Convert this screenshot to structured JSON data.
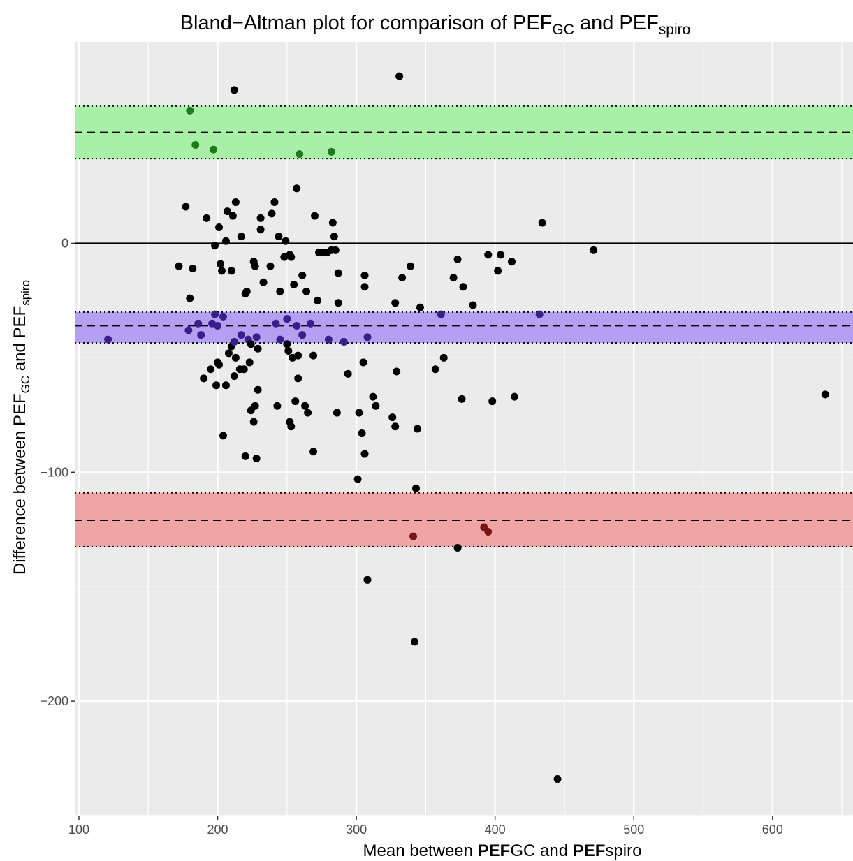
{
  "chart_data": {
    "type": "scatter",
    "title": {
      "prefix": "Bland−Altman plot for comparison of PEF",
      "sub1": "GC",
      "middle": " and PEF",
      "sub2": "spiro"
    },
    "xlabel": {
      "prefix": "Mean between ",
      "b1": "PEF",
      "t1": "GC and ",
      "b2": "PEF",
      "t2": "spiro"
    },
    "ylabel": {
      "prefix": "Difference between PEF",
      "sub1": "GC",
      "middle": " and PEF",
      "sub2": "spiro"
    },
    "xlim": [
      97,
      658
    ],
    "ylim": [
      -250,
      88
    ],
    "x_ticks": [
      100,
      200,
      300,
      400,
      500,
      600
    ],
    "x_tick_labels": [
      "100",
      "200",
      "300",
      "400",
      "500",
      "600"
    ],
    "y_ticks": [
      -200,
      -100,
      0
    ],
    "y_tick_labels": [
      "−200",
      "−100",
      "0"
    ],
    "grid": true,
    "background": "#ebebeb",
    "bands": [
      {
        "upper": 60,
        "mean": 48.5,
        "lower": 37,
        "fill": "#a8f0a8",
        "point_color": "#1f7a1f"
      },
      {
        "upper": -30,
        "mean": -36,
        "lower": -43.5,
        "fill": "#b4a0f2",
        "point_color": "#3a1f8a"
      },
      {
        "upper": -109,
        "mean": -121,
        "lower": -132.5,
        "fill": "#f0a5a5",
        "point_color": "#7a1515"
      }
    ],
    "zero_line": 0,
    "points": [
      {
        "x": 121,
        "y": -42
      },
      {
        "x": 172,
        "y": -10
      },
      {
        "x": 177,
        "y": 16
      },
      {
        "x": 179,
        "y": -38
      },
      {
        "x": 180,
        "y": -24
      },
      {
        "x": 182,
        "y": -11
      },
      {
        "x": 186,
        "y": -35
      },
      {
        "x": 188,
        "y": -40
      },
      {
        "x": 190,
        "y": -59
      },
      {
        "x": 192,
        "y": 11
      },
      {
        "x": 195,
        "y": -55
      },
      {
        "x": 196,
        "y": -35
      },
      {
        "x": 198,
        "y": -1
      },
      {
        "x": 198,
        "y": -31
      },
      {
        "x": 199,
        "y": -62
      },
      {
        "x": 200,
        "y": -52
      },
      {
        "x": 200,
        "y": -36
      },
      {
        "x": 201,
        "y": -53
      },
      {
        "x": 201,
        "y": 7
      },
      {
        "x": 202,
        "y": -9
      },
      {
        "x": 203,
        "y": -12
      },
      {
        "x": 204,
        "y": -32
      },
      {
        "x": 204,
        "y": -84
      },
      {
        "x": 206,
        "y": 1
      },
      {
        "x": 206,
        "y": -62
      },
      {
        "x": 207,
        "y": 14
      },
      {
        "x": 208,
        "y": -48
      },
      {
        "x": 210,
        "y": -45
      },
      {
        "x": 210,
        "y": -12
      },
      {
        "x": 211,
        "y": 12
      },
      {
        "x": 212,
        "y": -58
      },
      {
        "x": 212,
        "y": -43
      },
      {
        "x": 213,
        "y": -50
      },
      {
        "x": 213,
        "y": 18
      },
      {
        "x": 216,
        "y": -55
      },
      {
        "x": 217,
        "y": -40
      },
      {
        "x": 217,
        "y": 3
      },
      {
        "x": 219,
        "y": -55
      },
      {
        "x": 220,
        "y": -93
      },
      {
        "x": 220,
        "y": -22
      },
      {
        "x": 221,
        "y": -21
      },
      {
        "x": 222,
        "y": -42
      },
      {
        "x": 223,
        "y": -52
      },
      {
        "x": 224,
        "y": -44
      },
      {
        "x": 224,
        "y": -73
      },
      {
        "x": 226,
        "y": -78
      },
      {
        "x": 226,
        "y": -8
      },
      {
        "x": 227,
        "y": -71
      },
      {
        "x": 227,
        "y": -10
      },
      {
        "x": 228,
        "y": -94
      },
      {
        "x": 228,
        "y": -41
      },
      {
        "x": 229,
        "y": -64
      },
      {
        "x": 229,
        "y": -46
      },
      {
        "x": 231,
        "y": 6
      },
      {
        "x": 231,
        "y": 11
      },
      {
        "x": 233,
        "y": -17
      },
      {
        "x": 238,
        "y": -10
      },
      {
        "x": 239,
        "y": 13
      },
      {
        "x": 241,
        "y": 18
      },
      {
        "x": 242,
        "y": -35
      },
      {
        "x": 243,
        "y": -71
      },
      {
        "x": 244,
        "y": 3
      },
      {
        "x": 245,
        "y": -42
      },
      {
        "x": 245,
        "y": -21
      },
      {
        "x": 248,
        "y": -6
      },
      {
        "x": 249,
        "y": 1
      },
      {
        "x": 250,
        "y": -33
      },
      {
        "x": 250,
        "y": -44
      },
      {
        "x": 251,
        "y": -47
      },
      {
        "x": 252,
        "y": -78
      },
      {
        "x": 252,
        "y": -5
      },
      {
        "x": 253,
        "y": -6
      },
      {
        "x": 253,
        "y": -80
      },
      {
        "x": 254,
        "y": -50
      },
      {
        "x": 255,
        "y": -18
      },
      {
        "x": 256,
        "y": -69
      },
      {
        "x": 257,
        "y": -36
      },
      {
        "x": 257,
        "y": 24
      },
      {
        "x": 258,
        "y": -49
      },
      {
        "x": 258,
        "y": -59
      },
      {
        "x": 261,
        "y": -40
      },
      {
        "x": 261,
        "y": -14
      },
      {
        "x": 263,
        "y": -71
      },
      {
        "x": 264,
        "y": -21
      },
      {
        "x": 265,
        "y": -74
      },
      {
        "x": 267,
        "y": -35
      },
      {
        "x": 269,
        "y": -91
      },
      {
        "x": 269,
        "y": -49
      },
      {
        "x": 270,
        "y": 12
      },
      {
        "x": 272,
        "y": -25
      },
      {
        "x": 273,
        "y": -4
      },
      {
        "x": 276,
        "y": -4
      },
      {
        "x": 279,
        "y": -4
      },
      {
        "x": 280,
        "y": -42
      },
      {
        "x": 282,
        "y": -3
      },
      {
        "x": 283,
        "y": 9
      },
      {
        "x": 284,
        "y": 3
      },
      {
        "x": 285,
        "y": -3
      },
      {
        "x": 286,
        "y": -74
      },
      {
        "x": 287,
        "y": -13
      },
      {
        "x": 287,
        "y": -26
      },
      {
        "x": 291,
        "y": -43
      },
      {
        "x": 294,
        "y": -57
      },
      {
        "x": 301,
        "y": -103
      },
      {
        "x": 302,
        "y": -74
      },
      {
        "x": 304,
        "y": -83
      },
      {
        "x": 305,
        "y": -52
      },
      {
        "x": 306,
        "y": -14
      },
      {
        "x": 306,
        "y": -19
      },
      {
        "x": 306,
        "y": -92
      },
      {
        "x": 308,
        "y": -41
      },
      {
        "x": 308,
        "y": -147
      },
      {
        "x": 312,
        "y": -67
      },
      {
        "x": 314,
        "y": -71
      },
      {
        "x": 326,
        "y": -76
      },
      {
        "x": 328,
        "y": -80
      },
      {
        "x": 328,
        "y": -26
      },
      {
        "x": 329,
        "y": -56
      },
      {
        "x": 333,
        "y": -15
      },
      {
        "x": 339,
        "y": -10
      },
      {
        "x": 342,
        "y": -174
      },
      {
        "x": 343,
        "y": -107
      },
      {
        "x": 344,
        "y": -81
      },
      {
        "x": 346,
        "y": -28
      },
      {
        "x": 357,
        "y": -55
      },
      {
        "x": 361,
        "y": -31
      },
      {
        "x": 363,
        "y": -50
      },
      {
        "x": 370,
        "y": -15
      },
      {
        "x": 373,
        "y": -7
      },
      {
        "x": 376,
        "y": -68
      },
      {
        "x": 377,
        "y": -19
      },
      {
        "x": 384,
        "y": -27
      },
      {
        "x": 395,
        "y": -5
      },
      {
        "x": 398,
        "y": -69
      },
      {
        "x": 402,
        "y": -12
      },
      {
        "x": 404,
        "y": -5
      },
      {
        "x": 412,
        "y": -8
      },
      {
        "x": 414,
        "y": -67
      },
      {
        "x": 434,
        "y": 9
      },
      {
        "x": 445,
        "y": -234
      },
      {
        "x": 471,
        "y": -3
      },
      {
        "x": 638,
        "y": -66
      },
      {
        "x": 212,
        "y": 67
      },
      {
        "x": 331,
        "y": 73
      },
      {
        "x": 180,
        "y": 58
      },
      {
        "x": 184,
        "y": 43
      },
      {
        "x": 197,
        "y": 41
      },
      {
        "x": 259,
        "y": 39
      },
      {
        "x": 282,
        "y": 40
      },
      {
        "x": 341,
        "y": -128
      },
      {
        "x": 373,
        "y": -133
      },
      {
        "x": 392,
        "y": -124
      },
      {
        "x": 395,
        "y": -126
      },
      {
        "x": 432,
        "y": -31
      }
    ]
  }
}
